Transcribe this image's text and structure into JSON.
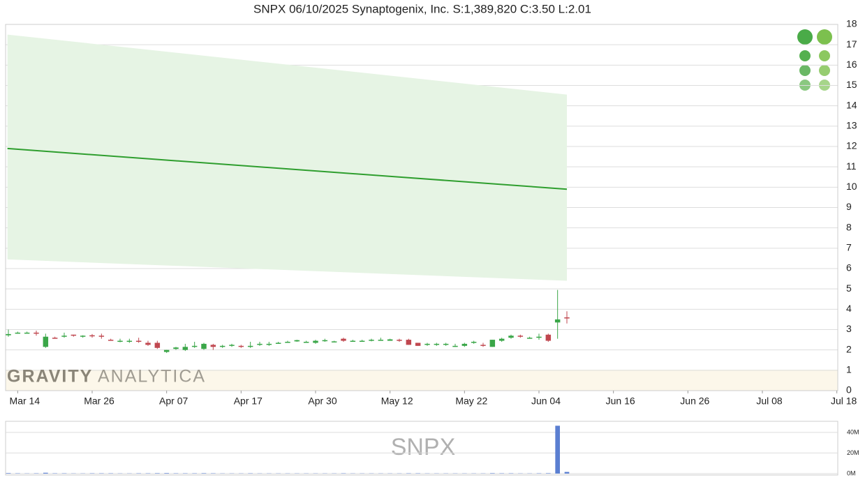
{
  "chart_data": [
    {
      "type": "candlestick",
      "title": "SNPX 06/10/2025 Synaptogenix, Inc. S:1,389,820 C:3.50 L:2.01",
      "open": [
        2.72,
        2.85,
        2.85,
        2.85,
        2.15,
        2.6,
        2.7,
        2.75,
        2.7,
        2.72,
        2.7,
        2.5,
        2.45,
        2.45,
        2.45,
        2.35,
        2.35,
        1.9,
        2.05,
        2.0,
        2.2,
        2.05,
        2.25,
        2.15,
        2.2,
        2.2,
        2.2,
        2.3,
        2.3,
        2.35,
        2.4,
        2.42,
        2.4,
        2.35,
        2.45,
        2.42,
        2.55,
        2.45,
        2.45,
        2.48,
        2.5,
        2.45,
        2.5,
        2.5,
        2.35,
        2.25,
        2.25,
        2.25,
        2.2,
        2.2,
        2.35,
        2.25,
        2.15,
        2.45,
        2.6,
        2.7,
        2.55,
        2.65,
        2.75,
        3.35,
        3.6
      ],
      "high": [
        3.0,
        2.9,
        2.9,
        2.95,
        2.8,
        2.65,
        2.85,
        2.75,
        2.72,
        2.78,
        2.8,
        2.55,
        2.55,
        2.55,
        2.6,
        2.45,
        2.45,
        2.0,
        2.15,
        2.3,
        2.4,
        2.35,
        2.3,
        2.25,
        2.3,
        2.25,
        2.4,
        2.4,
        2.4,
        2.4,
        2.45,
        2.5,
        2.45,
        2.5,
        2.55,
        2.45,
        2.6,
        2.5,
        2.5,
        2.55,
        2.6,
        2.55,
        2.55,
        2.55,
        2.35,
        2.35,
        2.35,
        2.35,
        2.3,
        2.35,
        2.45,
        2.35,
        2.5,
        2.6,
        2.75,
        2.75,
        2.65,
        2.8,
        2.8,
        4.95,
        3.9
      ],
      "low": [
        2.65,
        2.8,
        2.82,
        2.7,
        2.1,
        2.55,
        2.6,
        2.65,
        2.6,
        2.6,
        2.55,
        2.45,
        2.38,
        2.35,
        2.35,
        2.2,
        2.05,
        1.85,
        2.0,
        1.95,
        2.1,
        2.0,
        2.0,
        2.1,
        2.15,
        2.1,
        2.1,
        2.2,
        2.2,
        2.3,
        2.35,
        2.4,
        2.35,
        2.3,
        2.4,
        2.38,
        2.4,
        2.4,
        2.42,
        2.42,
        2.45,
        2.45,
        2.4,
        2.25,
        2.2,
        2.2,
        2.2,
        2.2,
        2.15,
        2.15,
        2.3,
        2.15,
        2.15,
        2.4,
        2.55,
        2.6,
        2.55,
        2.5,
        2.4,
        2.55,
        3.3
      ],
      "close": [
        2.78,
        2.85,
        2.85,
        2.8,
        2.65,
        2.58,
        2.7,
        2.7,
        2.7,
        2.68,
        2.68,
        2.45,
        2.45,
        2.45,
        2.4,
        2.25,
        2.1,
        2.0,
        2.12,
        2.15,
        2.2,
        2.3,
        2.15,
        2.2,
        2.25,
        2.15,
        2.2,
        2.3,
        2.3,
        2.35,
        2.4,
        2.48,
        2.4,
        2.45,
        2.48,
        2.42,
        2.45,
        2.45,
        2.45,
        2.5,
        2.5,
        2.52,
        2.45,
        2.25,
        2.2,
        2.3,
        2.3,
        2.3,
        2.2,
        2.3,
        2.4,
        2.2,
        2.5,
        2.55,
        2.7,
        2.65,
        2.6,
        2.65,
        2.45,
        3.5,
        3.55
      ],
      "up_color": "#3aa648",
      "down_color": "#c0474f",
      "channel": {
        "x": [
          -0.1,
          60
        ],
        "mid": [
          11.9,
          9.9
        ],
        "upper": [
          17.5,
          14.55
        ],
        "lower": [
          6.45,
          5.4
        ],
        "line_color": "#2e9e2e",
        "fill_color": "#e6f4e4"
      },
      "xlim": [
        -0.3,
        89.1
      ],
      "xticks": [
        {
          "value": 1,
          "label": "Mar 14"
        },
        {
          "value": 9,
          "label": "Mar 26"
        },
        {
          "value": 17,
          "label": "Apr 07"
        },
        {
          "value": 25,
          "label": "Apr 17"
        },
        {
          "value": 33,
          "label": "Apr 30"
        },
        {
          "value": 41,
          "label": "May 12"
        },
        {
          "value": 49,
          "label": "May 22"
        },
        {
          "value": 57,
          "label": "Jun 04"
        },
        {
          "value": 65,
          "label": "Jun 16"
        },
        {
          "value": 73,
          "label": "Jun 26"
        },
        {
          "value": 81,
          "label": "Jul 08"
        },
        {
          "value": 89,
          "label": "Jul 18"
        }
      ],
      "ylim": [
        0,
        18
      ],
      "yticks": [
        0,
        1,
        2,
        3,
        4,
        5,
        6,
        7,
        8,
        9,
        10,
        11,
        12,
        13,
        14,
        15,
        16,
        17,
        18
      ],
      "grid": true,
      "watermark": [
        "GRAVITY",
        "ANALYTICA"
      ]
    },
    {
      "type": "bar",
      "values": [
        0.5,
        0.3,
        0.2,
        0.3,
        0.8,
        0.3,
        0.3,
        0.2,
        0.2,
        0.3,
        0.3,
        0.3,
        0.2,
        0.2,
        0.3,
        0.3,
        0.4,
        0.5,
        0.3,
        0.3,
        0.3,
        0.4,
        0.3,
        0.2,
        0.2,
        0.2,
        0.3,
        0.2,
        0.2,
        0.2,
        0.2,
        0.2,
        0.2,
        0.2,
        0.2,
        0.2,
        0.3,
        0.2,
        0.2,
        0.2,
        0.2,
        0.2,
        0.2,
        0.3,
        0.3,
        0.2,
        0.2,
        0.2,
        0.2,
        0.2,
        0.2,
        0.2,
        0.4,
        0.3,
        0.3,
        0.2,
        0.2,
        0.3,
        0.4,
        46.5,
        1.6
      ],
      "color": "#5b7fd1",
      "ylim": [
        -1.4,
        50.8
      ],
      "yticks": [
        {
          "value": 0,
          "label": "0M"
        },
        {
          "value": 20,
          "label": "20M"
        },
        {
          "value": 40,
          "label": "40M"
        }
      ],
      "grid": true,
      "watermark": "SNPX"
    }
  ]
}
